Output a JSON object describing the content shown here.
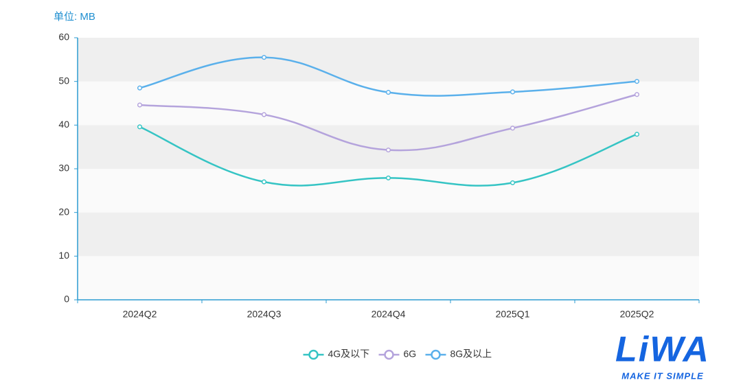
{
  "chart_data": {
    "type": "line",
    "unit_label": "单位: MB",
    "categories": [
      "2024Q2",
      "2024Q3",
      "2024Q4",
      "2025Q1",
      "2025Q2"
    ],
    "series": [
      {
        "name": "4G及以下",
        "color": "#35c4c4",
        "values": [
          39.6,
          27.0,
          27.9,
          26.8,
          37.9
        ]
      },
      {
        "name": "6G",
        "color": "#b4a3dc",
        "values": [
          44.6,
          42.4,
          34.3,
          39.3,
          47.0
        ]
      },
      {
        "name": "8G及以上",
        "color": "#5ab0eb",
        "values": [
          48.5,
          55.5,
          47.5,
          47.6,
          50.0
        ]
      }
    ],
    "ylim": [
      0,
      60
    ],
    "yticks": [
      0,
      10,
      20,
      30,
      40,
      50,
      60
    ],
    "smooth": true,
    "legend": "bottom"
  },
  "logo": {
    "text": "LiWA",
    "tagline": "MAKE IT SIMPLE"
  }
}
